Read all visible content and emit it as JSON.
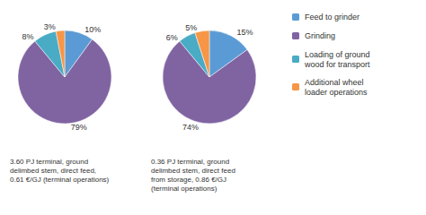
{
  "chart_data": [
    {
      "type": "pie",
      "title": "3.60 PJ terminal, ground\ndelimbed stem, direct feed,\n0.61 €/GJ (terminal operations)",
      "categories": [
        "Feed to grinder",
        "Grinding",
        "Loading of ground\nwood for transport",
        "Additional wheel\nloader operations"
      ],
      "values": [
        10,
        79,
        8,
        3
      ],
      "value_labels": [
        "10%",
        "79%",
        "8%",
        "3%"
      ],
      "colors": [
        "#5b9bd5",
        "#8064a2",
        "#4aabc5",
        "#f79646"
      ],
      "data_labels": true
    },
    {
      "type": "pie",
      "title": "0.36 PJ terminal, ground\ndelimbed stem, direct feed\nfrom storage, 0.86 €/GJ\n(terminal operations)",
      "categories": [
        "Feed to grinder",
        "Grinding",
        "Loading of ground\nwood for transport",
        "Additional wheel\nloader operations"
      ],
      "values": [
        15,
        74,
        6,
        5
      ],
      "value_labels": [
        "15%",
        "74%",
        "6%",
        "5%"
      ],
      "colors": [
        "#5b9bd5",
        "#8064a2",
        "#4aabc5",
        "#f79646"
      ],
      "data_labels": true,
      "legend": "upper right"
    }
  ]
}
